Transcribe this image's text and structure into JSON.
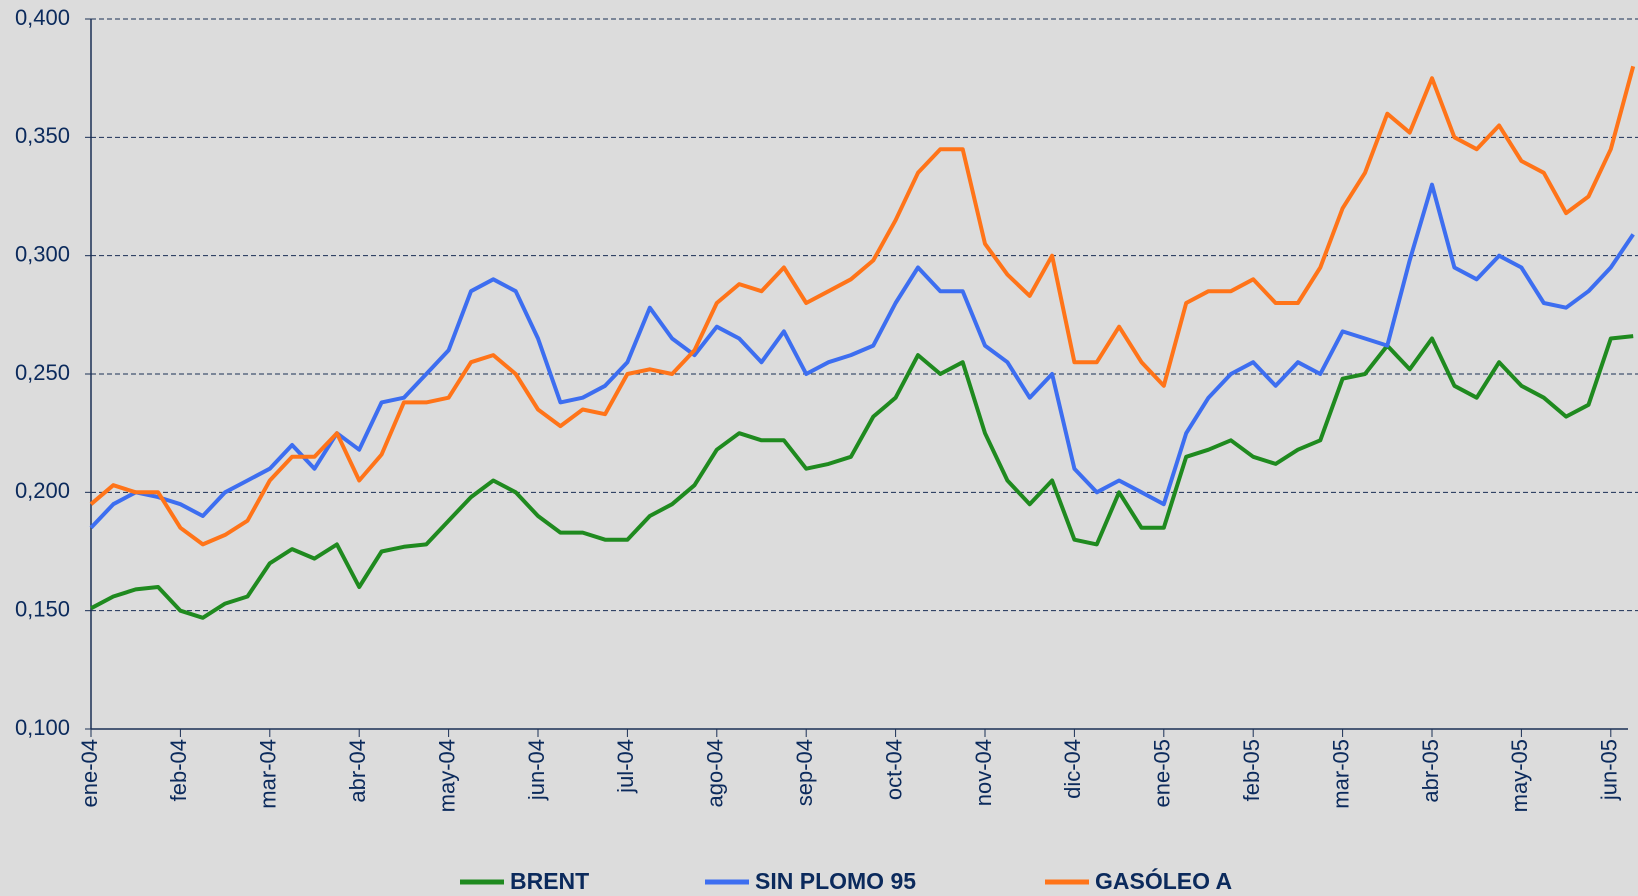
{
  "chart_data": {
    "type": "line",
    "categories": [
      "ene-04",
      null,
      null,
      null,
      "feb-04",
      null,
      null,
      null,
      "mar-04",
      null,
      null,
      null,
      "abr-04",
      null,
      null,
      null,
      "may-04",
      null,
      null,
      null,
      "jun-04",
      null,
      null,
      null,
      "jul-04",
      null,
      null,
      null,
      "ago-04",
      null,
      null,
      null,
      "sep-04",
      null,
      null,
      null,
      "oct-04",
      null,
      null,
      null,
      "nov-04",
      null,
      null,
      null,
      "dic-04",
      null,
      null,
      null,
      "ene-05",
      null,
      null,
      null,
      "feb-05",
      null,
      null,
      null,
      "mar-05",
      null,
      null,
      null,
      "abr-05",
      null,
      null,
      null,
      "may-05",
      null,
      null,
      null,
      "jun-05",
      null
    ],
    "series": [
      {
        "name": "BRENT",
        "color": "#1f8a1f",
        "values": [
          0.151,
          0.156,
          0.159,
          0.16,
          0.15,
          0.147,
          0.153,
          0.156,
          0.17,
          0.176,
          0.172,
          0.178,
          0.16,
          0.175,
          0.177,
          0.178,
          0.188,
          0.198,
          0.205,
          0.2,
          0.19,
          0.183,
          0.183,
          0.18,
          0.18,
          0.19,
          0.195,
          0.203,
          0.218,
          0.225,
          0.222,
          0.222,
          0.21,
          0.212,
          0.215,
          0.232,
          0.24,
          0.258,
          0.25,
          0.255,
          0.225,
          0.205,
          0.195,
          0.205,
          0.18,
          0.178,
          0.2,
          0.185,
          0.185,
          0.215,
          0.218,
          0.222,
          0.215,
          0.212,
          0.218,
          0.222,
          0.248,
          0.25,
          0.262,
          0.252,
          0.265,
          0.245,
          0.24,
          0.255,
          0.245,
          0.24,
          0.232,
          0.237,
          0.265,
          0.266
        ]
      },
      {
        "name": "SIN PLOMO 95",
        "color": "#3d6ef0",
        "values": [
          0.185,
          0.195,
          0.2,
          0.198,
          0.195,
          0.19,
          0.2,
          0.205,
          0.21,
          0.22,
          0.21,
          0.225,
          0.218,
          0.238,
          0.24,
          0.25,
          0.26,
          0.285,
          0.29,
          0.285,
          0.265,
          0.238,
          0.24,
          0.245,
          0.255,
          0.278,
          0.265,
          0.258,
          0.27,
          0.265,
          0.255,
          0.268,
          0.25,
          0.255,
          0.258,
          0.262,
          0.28,
          0.295,
          0.285,
          0.285,
          0.262,
          0.255,
          0.24,
          0.25,
          0.21,
          0.2,
          0.205,
          0.2,
          0.195,
          0.225,
          0.24,
          0.25,
          0.255,
          0.245,
          0.255,
          0.25,
          0.268,
          0.265,
          0.262,
          0.298,
          0.33,
          0.295,
          0.29,
          0.3,
          0.295,
          0.28,
          0.278,
          0.285,
          0.295,
          0.309
        ]
      },
      {
        "name": "GASÓLEO A",
        "color": "#ff7419",
        "values": [
          0.195,
          0.203,
          0.2,
          0.2,
          0.185,
          0.178,
          0.182,
          0.188,
          0.205,
          0.215,
          0.215,
          0.225,
          0.205,
          0.216,
          0.238,
          0.238,
          0.24,
          0.255,
          0.258,
          0.25,
          0.235,
          0.228,
          0.235,
          0.233,
          0.25,
          0.252,
          0.25,
          0.26,
          0.28,
          0.288,
          0.285,
          0.295,
          0.28,
          0.285,
          0.29,
          0.298,
          0.315,
          0.335,
          0.345,
          0.345,
          0.305,
          0.292,
          0.283,
          0.3,
          0.255,
          0.255,
          0.27,
          0.255,
          0.245,
          0.28,
          0.285,
          0.285,
          0.29,
          0.28,
          0.28,
          0.295,
          0.32,
          0.335,
          0.36,
          0.352,
          0.375,
          0.35,
          0.345,
          0.355,
          0.34,
          0.335,
          0.318,
          0.325,
          0.345,
          0.38
        ]
      }
    ],
    "ylim": [
      0.1,
      0.4
    ],
    "yticks": [
      {
        "value": 0.1,
        "label": "0,100"
      },
      {
        "value": 0.15,
        "label": "0,150"
      },
      {
        "value": 0.2,
        "label": "0,200"
      },
      {
        "value": 0.25,
        "label": "0,250"
      },
      {
        "value": 0.3,
        "label": "0,300"
      },
      {
        "value": 0.35,
        "label": "0,350"
      },
      {
        "value": 0.4,
        "label": "0,400"
      }
    ],
    "grid": true,
    "legend": "bottom"
  }
}
